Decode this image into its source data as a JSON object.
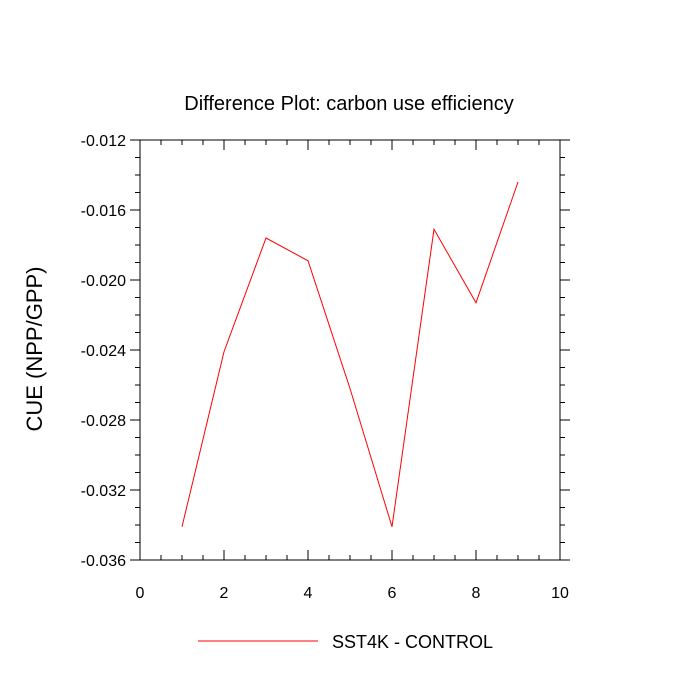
{
  "chart_data": {
    "type": "line",
    "title": "Difference Plot: carbon use efficiency",
    "xlabel": "",
    "ylabel": "CUE  (NPP/GPP)",
    "xlim": [
      0,
      10
    ],
    "ylim": [
      -0.036,
      -0.012
    ],
    "x_ticks": [
      0,
      2,
      4,
      6,
      8,
      10
    ],
    "x_tick_labels": [
      "0",
      "2",
      "4",
      "6",
      "8",
      "10"
    ],
    "y_ticks": [
      -0.036,
      -0.032,
      -0.028,
      -0.024,
      -0.02,
      -0.016,
      -0.012
    ],
    "y_tick_labels": [
      "-0.036",
      "-0.032",
      "-0.028",
      "-0.024",
      "-0.020",
      "-0.016",
      "-0.012"
    ],
    "grid": false,
    "legend_position": "bottom-center",
    "series": [
      {
        "name": "SST4K - CONTROL",
        "color": "#ff0000",
        "x": [
          1,
          2,
          3,
          4,
          5,
          6,
          7,
          8,
          9
        ],
        "values": [
          -0.0341,
          -0.0241,
          -0.0176,
          -0.0189,
          -0.0262,
          -0.0341,
          -0.0171,
          -0.0213,
          -0.0144
        ]
      }
    ]
  }
}
